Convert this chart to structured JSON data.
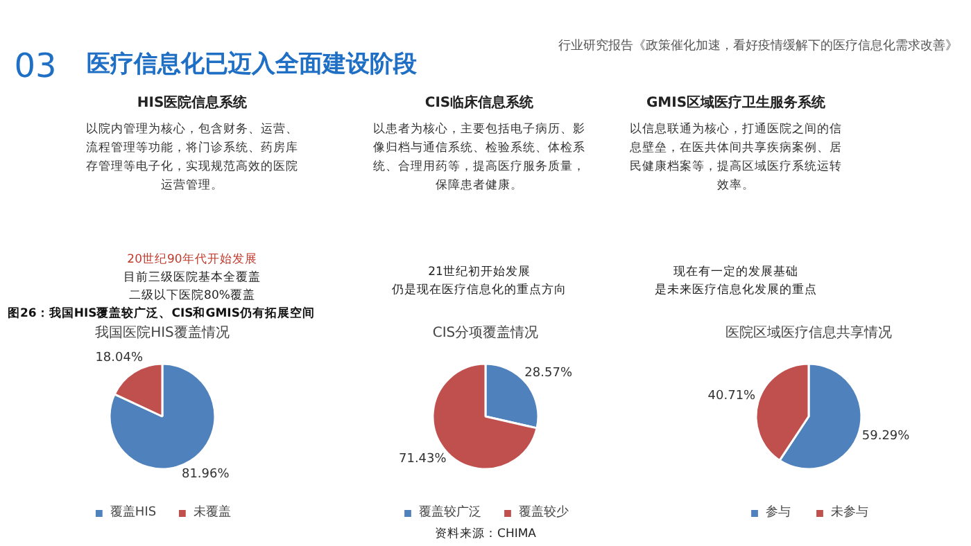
{
  "chart_data": [
    {
      "type": "other",
      "title": "医疗信息化已迈入全面建设阶段",
      "subtitle": "行业研究报告《政策催化加速，看好疫情缓解下的医疗信息化需求改善》",
      "annotations": [
        "03",
        "HIS医院信息系统",
        "以院内管理为核心，包含财务、运营、流程管理等功能，将门诊系统、药房库存管理等电子化，实现规范高效的医院运营管理。",
        "20世纪90年代开始发展",
        "目前三级医院基本全覆盖",
        "二级以下医院80%覆盖",
        "CIS临床信息系统",
        "以患者为核心，主要包括电子病历、影像归档与通信系统、检验系统、体检系统、合理用药等，提高医疗服务质量，保障患者健康。",
        "21世纪初开始发展",
        "仍是现在医疗信息化的重点方向",
        "GMIS区域医疗卫生服务系统",
        "以信息联通为核心，打通医院之间的信息壁垒，在医共体间共享疾病案例、居民健康档案等，提高区域医疗系统运转效率。",
        "现在有一定的发展基础",
        "是未来医疗信息化发展的重点",
        "图26：我国HIS覆盖较广泛、CIS和GMIS仍有拓展空间"
      ]
    },
    {
      "type": "pie",
      "title": "我国医院HIS覆盖情况",
      "categories": [
        "覆盖HIS",
        "未覆盖"
      ],
      "values": [
        81.96,
        18.04
      ],
      "value_labels": [
        "81.96%",
        "18.04%"
      ],
      "colors": [
        "#4f81bd",
        "#c0504d"
      ],
      "legend": "bottom"
    },
    {
      "type": "pie",
      "title": "CIS分项覆盖情况",
      "categories": [
        "覆盖较广泛",
        "覆盖较少"
      ],
      "values": [
        28.57,
        71.43
      ],
      "value_labels": [
        "28.57%",
        "71.43%"
      ],
      "colors": [
        "#4f81bd",
        "#c0504d"
      ],
      "legend": "bottom",
      "annotations": [
        "资料来源：CHIMA"
      ]
    },
    {
      "type": "pie",
      "title": "医院区域医疗信息共享情况",
      "categories": [
        "参与",
        "未参与"
      ],
      "values": [
        59.29,
        40.71
      ],
      "value_labels": [
        "59.29%",
        "40.71%"
      ],
      "colors": [
        "#4f81bd",
        "#c0504d"
      ],
      "legend": "bottom"
    }
  ]
}
